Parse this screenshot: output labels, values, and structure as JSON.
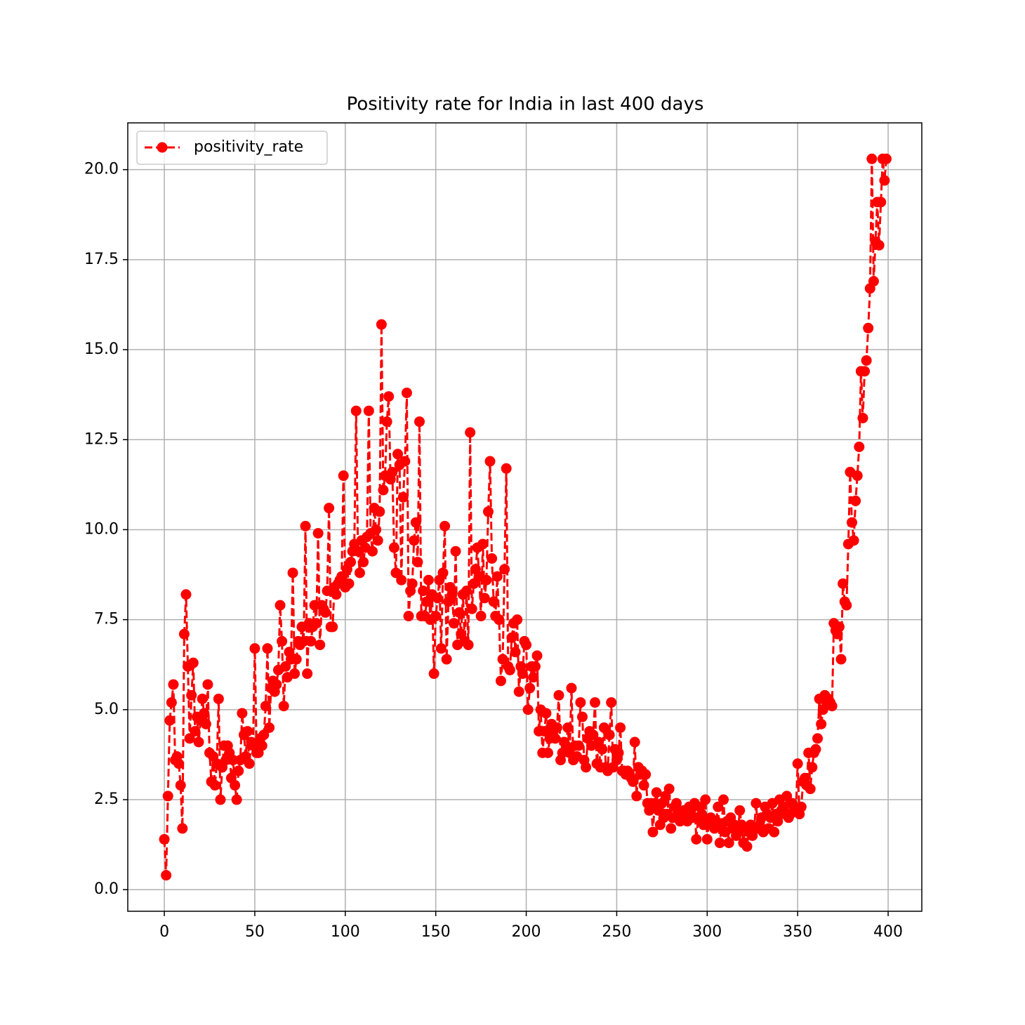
{
  "chart_data": {
    "type": "line",
    "title": "Positivity rate for India in last 400 days",
    "x": [
      0,
      1,
      2,
      3,
      4,
      5,
      6,
      7,
      8,
      9,
      10,
      11,
      12,
      13,
      14,
      15,
      16,
      17,
      18,
      19,
      20,
      21,
      22,
      23,
      24,
      25,
      26,
      27,
      28,
      29,
      30,
      31,
      32,
      33,
      34,
      35,
      36,
      37,
      38,
      39,
      40,
      41,
      42,
      43,
      44,
      45,
      46,
      47,
      48,
      49,
      50,
      51,
      52,
      53,
      54,
      55,
      56,
      57,
      58,
      59,
      60,
      61,
      62,
      63,
      64,
      65,
      66,
      67,
      68,
      69,
      70,
      71,
      72,
      73,
      74,
      75,
      76,
      77,
      78,
      79,
      80,
      81,
      82,
      83,
      84,
      85,
      86,
      87,
      88,
      89,
      90,
      91,
      92,
      93,
      94,
      95,
      96,
      97,
      98,
      99,
      100,
      101,
      102,
      103,
      104,
      105,
      106,
      107,
      108,
      109,
      110,
      111,
      112,
      113,
      114,
      115,
      116,
      117,
      118,
      119,
      120,
      121,
      122,
      123,
      124,
      125,
      126,
      127,
      128,
      129,
      130,
      131,
      132,
      133,
      134,
      135,
      136,
      137,
      138,
      139,
      140,
      141,
      142,
      143,
      144,
      145,
      146,
      147,
      148,
      149,
      150,
      151,
      152,
      153,
      154,
      155,
      156,
      157,
      158,
      159,
      160,
      161,
      162,
      163,
      164,
      165,
      166,
      167,
      168,
      169,
      170,
      171,
      172,
      173,
      174,
      175,
      176,
      177,
      178,
      179,
      180,
      181,
      182,
      183,
      184,
      185,
      186,
      187,
      188,
      189,
      190,
      191,
      192,
      193,
      194,
      195,
      196,
      197,
      198,
      199,
      200,
      201,
      202,
      203,
      204,
      205,
      206,
      207,
      208,
      209,
      210,
      211,
      212,
      213,
      214,
      215,
      216,
      217,
      218,
      219,
      220,
      221,
      222,
      223,
      224,
      225,
      226,
      227,
      228,
      229,
      230,
      231,
      232,
      233,
      234,
      235,
      236,
      237,
      238,
      239,
      240,
      241,
      242,
      243,
      244,
      245,
      246,
      247,
      248,
      249,
      250,
      251,
      252,
      253,
      254,
      255,
      256,
      257,
      258,
      259,
      260,
      261,
      262,
      263,
      264,
      265,
      266,
      267,
      268,
      269,
      270,
      271,
      272,
      273,
      274,
      275,
      276,
      277,
      278,
      279,
      280,
      281,
      282,
      283,
      284,
      285,
      286,
      287,
      288,
      289,
      290,
      291,
      292,
      293,
      294,
      295,
      296,
      297,
      298,
      299,
      300,
      301,
      302,
      303,
      304,
      305,
      306,
      307,
      308,
      309,
      310,
      311,
      312,
      313,
      314,
      315,
      316,
      317,
      318,
      319,
      320,
      321,
      322,
      323,
      324,
      325,
      326,
      327,
      328,
      329,
      330,
      331,
      332,
      333,
      334,
      335,
      336,
      337,
      338,
      339,
      340,
      341,
      342,
      343,
      344,
      345,
      346,
      347,
      348,
      349,
      350,
      351,
      352,
      353,
      354,
      355,
      356,
      357,
      358,
      359,
      360,
      361,
      362,
      363,
      364,
      365,
      366,
      367,
      368,
      369,
      370,
      371,
      372,
      373,
      374,
      375,
      376,
      377,
      378,
      379,
      380,
      381,
      382,
      383,
      384,
      385,
      386,
      387,
      388,
      389,
      390,
      391,
      392,
      393,
      394,
      395,
      396,
      397,
      398,
      399
    ],
    "series": [
      {
        "name": "positivity_rate",
        "color": "#ff0000",
        "values": [
          1.4,
          0.4,
          2.6,
          4.7,
          5.2,
          5.7,
          3.6,
          3.7,
          3.5,
          2.9,
          1.7,
          7.1,
          8.2,
          6.2,
          4.2,
          5.4,
          6.3,
          4.4,
          4.8,
          4.1,
          4.7,
          5.3,
          4.9,
          4.6,
          5.7,
          3.8,
          3.0,
          3.7,
          2.9,
          3.5,
          5.3,
          2.5,
          3.4,
          4.0,
          3.6,
          4.0,
          3.8,
          3.1,
          3.6,
          2.9,
          2.5,
          3.3,
          3.6,
          4.9,
          4.3,
          3.7,
          4.4,
          3.5,
          4.1,
          4.0,
          6.7,
          3.8,
          3.8,
          4.2,
          4.0,
          4.3,
          5.1,
          6.7,
          4.5,
          5.6,
          5.8,
          5.5,
          5.7,
          6.1,
          7.9,
          6.9,
          5.1,
          6.2,
          5.9,
          6.6,
          6.4,
          8.8,
          6.0,
          6.4,
          6.9,
          6.8,
          7.3,
          6.9,
          10.1,
          6.0,
          7.4,
          6.9,
          7.3,
          7.9,
          7.4,
          9.9,
          6.8,
          7.9,
          7.8,
          7.7,
          8.3,
          10.6,
          7.3,
          7.3,
          8.4,
          8.2,
          8.5,
          8.6,
          8.7,
          11.5,
          8.4,
          8.9,
          8.5,
          9.1,
          9.4,
          9.6,
          13.3,
          9.4,
          8.8,
          9.7,
          9.1,
          9.5,
          9.8,
          13.3,
          9.9,
          9.4,
          10.6,
          10.0,
          9.7,
          10.5,
          15.7,
          11.1,
          11.5,
          13.0,
          13.7,
          11.4,
          11.6,
          9.5,
          8.8,
          12.1,
          11.8,
          8.6,
          10.9,
          11.9,
          13.8,
          7.6,
          8.3,
          8.5,
          9.7,
          10.2,
          9.1,
          13.0,
          7.6,
          8.3,
          7.6,
          8.0,
          8.6,
          7.5,
          8.2,
          6.0,
          7.6,
          8.1,
          8.6,
          6.7,
          8.8,
          10.1,
          6.4,
          8.0,
          8.4,
          8.2,
          7.4,
          9.4,
          6.8,
          7.7,
          7.1,
          8.2,
          6.9,
          8.3,
          6.8,
          12.7,
          7.8,
          8.5,
          8.9,
          9.5,
          8.7,
          7.6,
          9.6,
          8.1,
          8.6,
          10.5,
          11.9,
          9.2,
          8.0,
          7.6,
          8.7,
          7.5,
          5.8,
          6.4,
          8.9,
          11.7,
          6.2,
          6.1,
          7.0,
          7.4,
          6.6,
          7.5,
          5.5,
          6.2,
          6.0,
          6.9,
          6.8,
          5.0,
          5.6,
          6.2,
          5.9,
          6.2,
          6.5,
          4.4,
          5.0,
          3.8,
          4.4,
          4.9,
          3.8,
          4.2,
          4.6,
          4.4,
          4.2,
          4.5,
          5.4,
          3.6,
          3.8,
          4.1,
          4.0,
          4.5,
          3.8,
          5.6,
          3.6,
          4.0,
          3.7,
          4.0,
          5.2,
          4.8,
          3.6,
          3.4,
          4.2,
          4.4,
          4.0,
          4.3,
          5.2,
          3.5,
          4.1,
          3.4,
          3.9,
          4.5,
          3.4,
          3.3,
          4.3,
          5.2,
          3.4,
          3.9,
          3.6,
          3.8,
          4.5,
          3.3,
          3.3,
          3.2,
          3.3,
          3.2,
          3.1,
          3.0,
          4.1,
          2.6,
          3.4,
          3.2,
          3.3,
          2.9,
          3.2,
          2.4,
          2.2,
          2.4,
          1.6,
          2.4,
          2.7,
          2.2,
          1.8,
          2.4,
          2.0,
          2.6,
          2.1,
          2.8,
          1.7,
          2.0,
          2.3,
          2.4,
          2.2,
          1.9,
          2.0,
          2.2,
          2.1,
          1.9,
          2.3,
          2.2,
          2.0,
          2.4,
          1.4,
          2.0,
          2.3,
          2.1,
          1.8,
          2.5,
          1.4,
          1.9,
          2.0,
          1.8,
          1.7,
          1.9,
          2.3,
          1.3,
          1.8,
          2.5,
          1.6,
          1.9,
          1.3,
          2.0,
          1.7,
          1.8,
          1.5,
          1.6,
          2.2,
          1.8,
          1.3,
          1.7,
          1.2,
          1.6,
          1.8,
          1.5,
          1.7,
          2.4,
          1.7,
          1.8,
          2.0,
          1.6,
          2.3,
          2.1,
          1.7,
          2.0,
          2.4,
          1.6,
          2.1,
          1.9,
          2.5,
          2.2,
          2.3,
          2.1,
          2.6,
          2.0,
          2.1,
          2.4,
          2.3,
          2.2,
          3.5,
          2.1,
          2.3,
          3.0,
          3.1,
          2.9,
          3.8,
          2.8,
          3.4,
          3.8,
          3.9,
          4.2,
          5.3,
          4.6,
          5.0,
          5.4,
          5.2,
          5.3,
          5.2,
          5.1,
          7.4,
          7.2,
          7.1,
          7.3,
          6.4,
          8.5,
          8.0,
          7.9,
          9.6,
          11.6,
          10.2,
          9.7,
          10.8,
          11.5,
          12.3,
          14.4,
          13.1,
          14.4,
          14.7,
          15.6,
          16.7,
          20.3,
          16.9,
          18.0,
          19.1,
          17.9,
          19.1,
          20.3,
          19.7,
          20.3
        ]
      }
    ],
    "xlim": [
      -20.2,
      418.6
    ],
    "ylim": [
      -0.6,
      21.3
    ],
    "xticks": [
      0,
      50,
      100,
      150,
      200,
      250,
      300,
      350,
      400
    ],
    "yticks": [
      {
        "value": 0,
        "label": "0.0"
      },
      {
        "value": 2.5,
        "label": "2.5"
      },
      {
        "value": 5,
        "label": "5.0"
      },
      {
        "value": 7.5,
        "label": "7.5"
      },
      {
        "value": 10,
        "label": "10.0"
      },
      {
        "value": 12.5,
        "label": "12.5"
      },
      {
        "value": 15,
        "label": "15.0"
      },
      {
        "value": 17.5,
        "label": "17.5"
      },
      {
        "value": 20,
        "label": "20.0"
      }
    ],
    "grid": true,
    "legend": "upper left",
    "linestyle": "dashed",
    "marker": "circle"
  }
}
